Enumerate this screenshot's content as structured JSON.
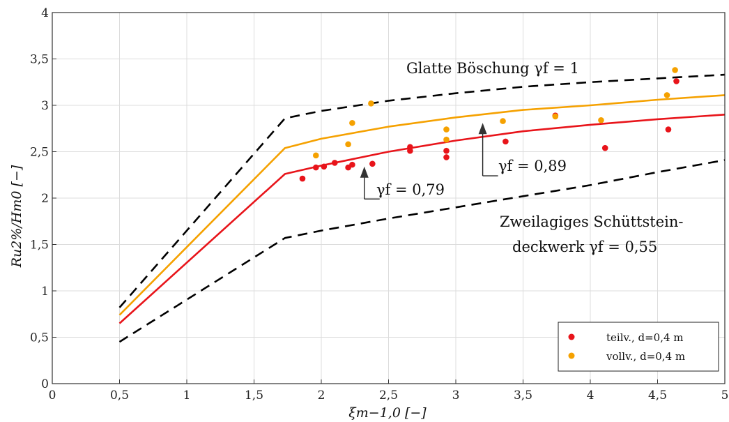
{
  "chart_data": {
    "type": "scatter",
    "xlabel": "ξm−1,0 [−]",
    "ylabel": "Ru2%/Hm0 [−]",
    "xlim": [
      0,
      5
    ],
    "ylim": [
      0,
      4
    ],
    "grid": true,
    "x_ticks": [
      0,
      0.5,
      1,
      1.5,
      2,
      2.5,
      3,
      3.5,
      4,
      4.5,
      5
    ],
    "x_tick_labels": [
      "0",
      "0,5",
      "1",
      "1,5",
      "2",
      "2,5",
      "3",
      "3,5",
      "4",
      "4,5",
      "5"
    ],
    "y_ticks": [
      0,
      0.5,
      1,
      1.5,
      2,
      2.5,
      3,
      3.5,
      4
    ],
    "y_tick_labels": [
      "0",
      "0,5",
      "1",
      "1,5",
      "2",
      "2,5",
      "3",
      "3,5",
      "4"
    ],
    "lines": [
      {
        "style": "dashed",
        "color": "#000000",
        "x": [
          0.5,
          1.73,
          2.0,
          2.5,
          3.0,
          3.5,
          4.0,
          4.5,
          5.0
        ],
        "y": [
          0.82,
          2.86,
          2.94,
          3.05,
          3.13,
          3.2,
          3.25,
          3.29,
          3.33
        ]
      },
      {
        "style": "solid",
        "color": "#f5a100",
        "x": [
          0.5,
          1.73,
          2.0,
          2.5,
          3.0,
          3.5,
          4.0,
          4.5,
          5.0
        ],
        "y": [
          0.74,
          2.54,
          2.64,
          2.77,
          2.87,
          2.95,
          3.0,
          3.06,
          3.11
        ]
      },
      {
        "style": "solid",
        "color": "#e8141a",
        "x": [
          0.5,
          1.73,
          2.0,
          2.5,
          3.0,
          3.5,
          4.0,
          4.5,
          5.0
        ],
        "y": [
          0.65,
          2.26,
          2.35,
          2.5,
          2.62,
          2.72,
          2.79,
          2.85,
          2.9
        ]
      },
      {
        "style": "dashed",
        "color": "#000000",
        "x": [
          0.5,
          1.73,
          2.0,
          2.5,
          3.0,
          3.5,
          4.0,
          4.5,
          5.0
        ],
        "y": [
          0.45,
          1.57,
          1.65,
          1.78,
          1.9,
          2.02,
          2.14,
          2.28,
          2.41
        ]
      }
    ],
    "series": [
      {
        "name": "teilv., d=0,4 m",
        "color": "#e8141a",
        "points": [
          [
            1.86,
            2.21
          ],
          [
            1.96,
            2.33
          ],
          [
            2.02,
            2.34
          ],
          [
            2.1,
            2.38
          ],
          [
            2.2,
            2.33
          ],
          [
            2.23,
            2.36
          ],
          [
            2.38,
            2.37
          ],
          [
            2.66,
            2.55
          ],
          [
            2.66,
            2.51
          ],
          [
            2.93,
            2.51
          ],
          [
            2.93,
            2.44
          ],
          [
            3.37,
            2.61
          ],
          [
            3.74,
            2.89
          ],
          [
            4.11,
            2.54
          ],
          [
            4.58,
            2.74
          ],
          [
            4.64,
            3.26
          ]
        ]
      },
      {
        "name": "vollv., d=0,4 m",
        "color": "#f5a100",
        "points": [
          [
            1.96,
            2.46
          ],
          [
            2.2,
            2.58
          ],
          [
            2.23,
            2.81
          ],
          [
            2.37,
            3.02
          ],
          [
            2.93,
            2.74
          ],
          [
            2.93,
            2.63
          ],
          [
            3.35,
            2.83
          ],
          [
            3.74,
            2.88
          ],
          [
            4.08,
            2.84
          ],
          [
            4.57,
            3.11
          ],
          [
            4.63,
            3.38
          ]
        ]
      }
    ],
    "annotations": [
      {
        "id": "glatt",
        "text": "Glatte Böschung γf = 1",
        "x": 2.7,
        "y": 3.76
      },
      {
        "id": "zwei1",
        "text": "Zweilagiges Schüttstein-",
        "x": 3.4,
        "y": 1.75
      },
      {
        "id": "zwei2",
        "text": "deckwerk γf = 0,55",
        "x": 3.68,
        "y": 1.45
      },
      {
        "id": "g089",
        "text": "γf = 0,89",
        "x": 3.22,
        "y": 2.31
      },
      {
        "id": "g079",
        "text": "γf = 0,79",
        "x": 2.33,
        "y": 2.06
      }
    ],
    "arrows": [
      {
        "x": 3.2,
        "y_from": 2.24,
        "y_to": 2.81
      },
      {
        "x": 2.32,
        "y_from": 1.99,
        "y_to": 2.34
      }
    ],
    "legend": {
      "position": "bottom-right"
    }
  }
}
